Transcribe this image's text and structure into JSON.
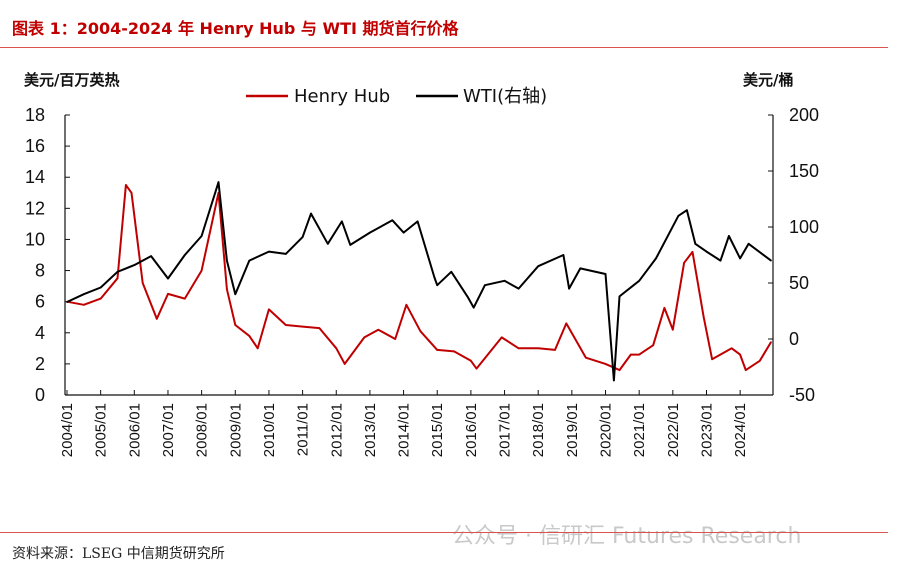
{
  "title": "图表 1：2004-2024 年 Henry Hub 与 WTI 期货首行价格",
  "source": "资料来源：LSEG  中信期货研究所",
  "watermark": "公众号 · 信研汇 Futures Research",
  "colors": {
    "henry_hub": "#c00000",
    "wti": "#000000",
    "title": "#c00000"
  },
  "chart_data": {
    "type": "line",
    "xlabel": "",
    "left_axis_unit": "美元/百万英热",
    "right_axis_unit": "美元/桶",
    "ylim_left": [
      0,
      18
    ],
    "ylim_right": [
      -50,
      200
    ],
    "yticks_left": [
      "0",
      "2",
      "4",
      "6",
      "8",
      "10",
      "12",
      "14",
      "16",
      "18"
    ],
    "yticks_right": [
      "-50",
      "0",
      "50",
      "100",
      "150",
      "200"
    ],
    "xticks": [
      "2004/01",
      "2005/01",
      "2006/01",
      "2007/01",
      "2008/01",
      "2009/01",
      "2010/01",
      "2011/01",
      "2012/01",
      "2013/01",
      "2014/01",
      "2015/01",
      "2016/01",
      "2017/01",
      "2018/01",
      "2019/01",
      "2020/01",
      "2021/01",
      "2022/01",
      "2023/01",
      "2024/01"
    ],
    "legend_position": "top-center",
    "grid": false,
    "series": [
      {
        "name": "Henry Hub",
        "axis": "left",
        "x": [
          "2004/01",
          "2004/07",
          "2005/01",
          "2005/07",
          "2005/10",
          "2005/12",
          "2006/04",
          "2006/09",
          "2007/01",
          "2007/07",
          "2008/01",
          "2008/07",
          "2008/10",
          "2009/01",
          "2009/06",
          "2009/09",
          "2010/01",
          "2010/07",
          "2011/01",
          "2011/07",
          "2012/01",
          "2012/04",
          "2012/11",
          "2013/04",
          "2013/10",
          "2014/02",
          "2014/07",
          "2015/01",
          "2015/07",
          "2016/01",
          "2016/03",
          "2016/12",
          "2017/06",
          "2018/01",
          "2018/07",
          "2018/11",
          "2019/06",
          "2020/01",
          "2020/06",
          "2020/10",
          "2021/01",
          "2021/06",
          "2021/10",
          "2022/01",
          "2022/05",
          "2022/08",
          "2022/12",
          "2023/03",
          "2023/10",
          "2024/01",
          "2024/03",
          "2024/08",
          "2024/12"
        ],
        "values": [
          6.0,
          5.8,
          6.2,
          7.5,
          13.5,
          13.0,
          7.2,
          4.9,
          6.5,
          6.2,
          8.0,
          13.0,
          6.8,
          4.5,
          3.8,
          3.0,
          5.5,
          4.5,
          4.4,
          4.3,
          3.0,
          2.0,
          3.7,
          4.2,
          3.6,
          5.8,
          4.1,
          2.9,
          2.8,
          2.2,
          1.7,
          3.7,
          3.0,
          3.0,
          2.9,
          4.6,
          2.4,
          2.0,
          1.6,
          2.6,
          2.6,
          3.2,
          5.6,
          4.2,
          8.5,
          9.2,
          5.0,
          2.3,
          3.0,
          2.6,
          1.6,
          2.2,
          3.4
        ]
      },
      {
        "name": "WTI(右轴)",
        "axis": "right",
        "x": [
          "2004/01",
          "2004/07",
          "2005/01",
          "2005/07",
          "2006/01",
          "2006/07",
          "2007/01",
          "2007/07",
          "2008/01",
          "2008/07",
          "2008/10",
          "2009/01",
          "2009/06",
          "2010/01",
          "2010/07",
          "2011/01",
          "2011/04",
          "2011/10",
          "2012/03",
          "2012/06",
          "2013/01",
          "2013/09",
          "2014/01",
          "2014/06",
          "2014/12",
          "2015/01",
          "2015/06",
          "2015/12",
          "2016/02",
          "2016/06",
          "2017/01",
          "2017/06",
          "2018/01",
          "2018/10",
          "2018/12",
          "2019/04",
          "2020/01",
          "2020/04",
          "2020/06",
          "2021/01",
          "2021/07",
          "2022/03",
          "2022/06",
          "2022/09",
          "2023/01",
          "2023/06",
          "2023/09",
          "2024/01",
          "2024/04",
          "2024/12"
        ],
        "values": [
          33,
          40,
          46,
          60,
          66,
          74,
          54,
          75,
          92,
          140,
          70,
          40,
          70,
          78,
          76,
          91,
          112,
          85,
          105,
          84,
          95,
          106,
          95,
          105,
          55,
          48,
          60,
          37,
          28,
          48,
          52,
          45,
          65,
          75,
          45,
          63,
          58,
          -37,
          38,
          52,
          72,
          110,
          115,
          85,
          78,
          70,
          92,
          72,
          85,
          70
        ]
      }
    ]
  }
}
